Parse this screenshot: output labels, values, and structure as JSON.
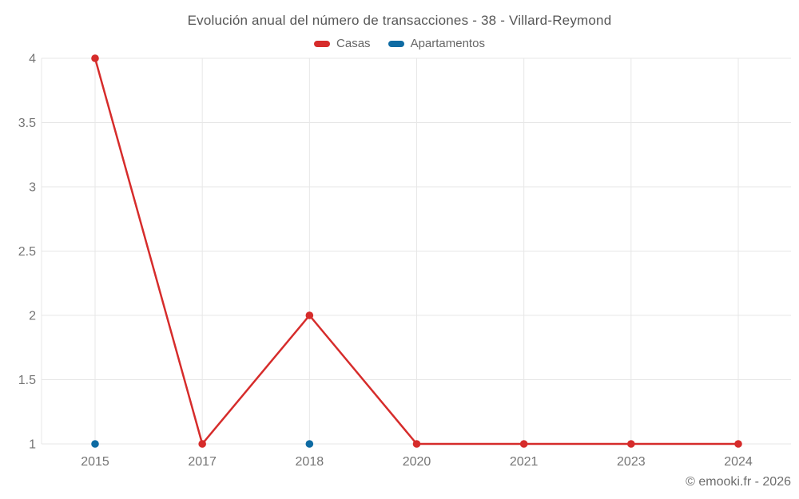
{
  "footer": {
    "copyright": "© emooki.fr - 2026"
  },
  "colors": {
    "background": "#ffffff",
    "grid": "#e7e7e7",
    "tick_label": "#757575",
    "title_text": "#565656",
    "legend_text": "#666666",
    "casas_red": "#d62c2b",
    "apartamentos_blue": "#0e6ba3"
  },
  "chart_data": {
    "type": "line",
    "title": "Evolución anual del número de transacciones - 38 - Villard-Reymond",
    "categories": [
      "2015",
      "2017",
      "2018",
      "2020",
      "2021",
      "2023",
      "2024"
    ],
    "series": [
      {
        "name": "Casas",
        "color": "#d62c2b",
        "values": [
          4,
          1,
          2,
          1,
          1,
          1,
          1
        ]
      },
      {
        "name": "Apartamentos",
        "color": "#0e6ba3",
        "values": [
          1,
          null,
          1,
          null,
          null,
          null,
          null
        ]
      }
    ],
    "y_ticks": [
      4,
      3.5,
      3,
      2.5,
      2,
      1.5,
      1
    ],
    "ylim": [
      1,
      4
    ],
    "xlabel": "",
    "ylabel": "",
    "grid": true,
    "legend_position": "top"
  }
}
